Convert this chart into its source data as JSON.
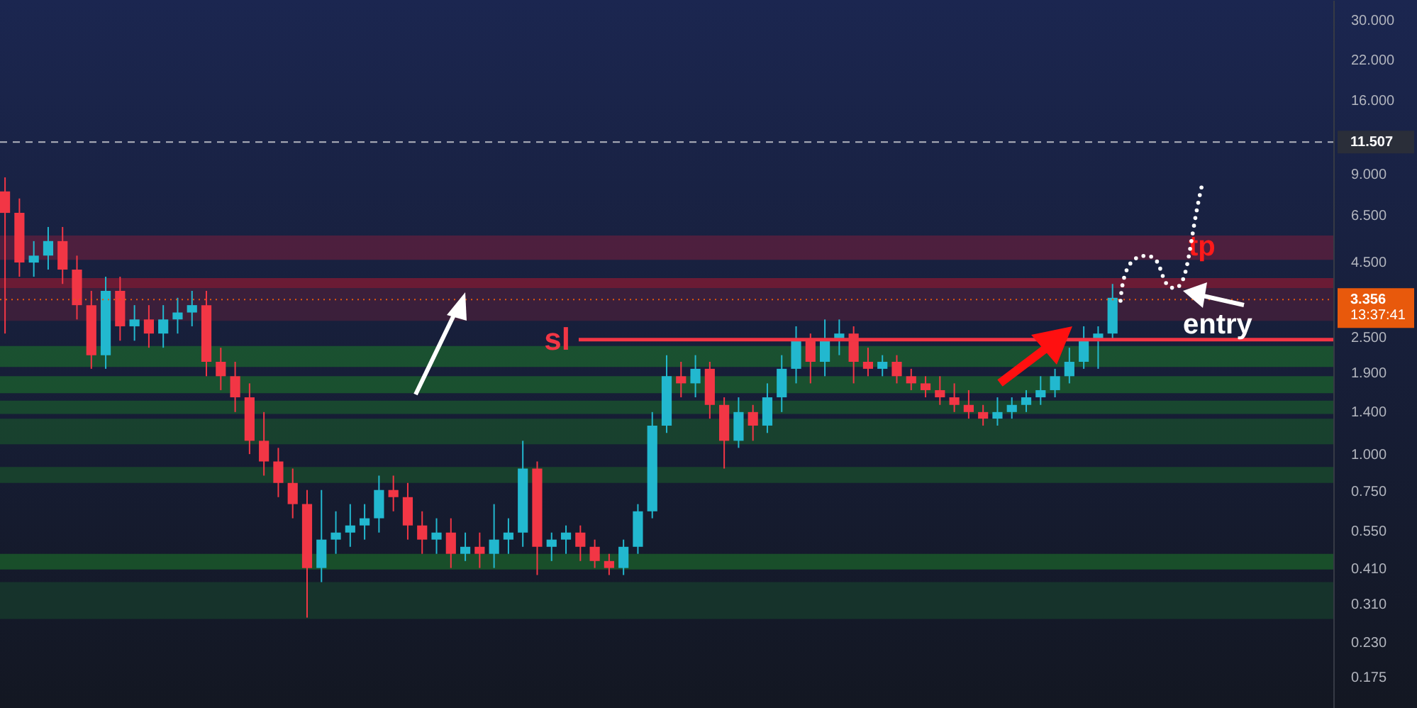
{
  "chart_data": {
    "type": "candlestick",
    "categories": [
      null,
      null,
      null,
      null,
      null,
      null,
      null,
      null,
      null,
      null,
      null,
      null,
      null,
      null,
      null,
      null,
      null,
      null,
      null,
      null,
      null,
      null,
      null,
      null,
      null,
      null,
      null,
      null,
      null,
      null,
      null,
      null,
      null,
      null,
      null,
      null,
      null,
      null,
      null,
      null,
      null,
      null,
      null,
      null,
      null,
      null,
      null,
      null,
      null,
      null,
      null,
      null,
      null,
      null,
      null,
      null,
      null,
      null,
      null,
      null,
      null,
      null,
      null,
      null,
      null,
      null,
      null,
      null,
      null,
      null,
      null,
      null,
      null,
      null,
      null,
      null,
      null,
      null,
      null,
      null,
      null,
      null,
      null,
      null,
      null,
      null,
      null,
      null,
      null,
      null,
      null,
      null,
      null
    ],
    "ohlc": [
      [
        7.82,
        8.73,
        2.57,
        6.61
      ],
      [
        6.61,
        7.4,
        4.01,
        4.48
      ],
      [
        4.48,
        5.3,
        4.01,
        4.73
      ],
      [
        4.73,
        5.92,
        4.24,
        5.3
      ],
      [
        5.3,
        5.92,
        3.79,
        4.24
      ],
      [
        4.24,
        4.73,
        2.87,
        3.21
      ],
      [
        3.21,
        3.59,
        1.95,
        2.17
      ],
      [
        2.17,
        4.01,
        1.95,
        3.59
      ],
      [
        3.59,
        4.01,
        2.43,
        2.72
      ],
      [
        2.72,
        3.21,
        2.43,
        2.87
      ],
      [
        2.87,
        3.21,
        2.3,
        2.57
      ],
      [
        2.57,
        3.21,
        2.3,
        2.87
      ],
      [
        2.87,
        3.4,
        2.57,
        3.03
      ],
      [
        3.03,
        3.59,
        2.72,
        3.21
      ],
      [
        3.21,
        3.59,
        1.84,
        2.06
      ],
      [
        2.06,
        2.3,
        1.65,
        1.84
      ],
      [
        1.84,
        2.06,
        1.39,
        1.56
      ],
      [
        1.56,
        1.74,
        1.0,
        1.11
      ],
      [
        1.11,
        1.39,
        0.845,
        0.944
      ],
      [
        0.944,
        1.05,
        0.714,
        0.798
      ],
      [
        0.798,
        0.893,
        0.605,
        0.676
      ],
      [
        0.676,
        0.755,
        0.278,
        0.41
      ],
      [
        0.41,
        0.755,
        0.367,
        0.512
      ],
      [
        0.512,
        0.639,
        0.458,
        0.541
      ],
      [
        0.541,
        0.676,
        0.484,
        0.572
      ],
      [
        0.572,
        0.676,
        0.512,
        0.605
      ],
      [
        0.605,
        0.845,
        0.541,
        0.755
      ],
      [
        0.755,
        0.845,
        0.639,
        0.714
      ],
      [
        0.714,
        0.798,
        0.512,
        0.572
      ],
      [
        0.572,
        0.639,
        0.458,
        0.512
      ],
      [
        0.512,
        0.605,
        0.458,
        0.541
      ],
      [
        0.541,
        0.605,
        0.41,
        0.458
      ],
      [
        0.458,
        0.541,
        0.433,
        0.484
      ],
      [
        0.484,
        0.541,
        0.41,
        0.458
      ],
      [
        0.458,
        0.676,
        0.41,
        0.512
      ],
      [
        0.512,
        0.605,
        0.458,
        0.541
      ],
      [
        0.541,
        1.11,
        0.484,
        0.893
      ],
      [
        0.893,
        0.944,
        0.388,
        0.484
      ],
      [
        0.484,
        0.541,
        0.433,
        0.512
      ],
      [
        0.512,
        0.572,
        0.458,
        0.541
      ],
      [
        0.541,
        0.572,
        0.433,
        0.484
      ],
      [
        0.484,
        0.512,
        0.41,
        0.433
      ],
      [
        0.433,
        0.458,
        0.388,
        0.41
      ],
      [
        0.41,
        0.512,
        0.388,
        0.484
      ],
      [
        0.484,
        0.676,
        0.458,
        0.639
      ],
      [
        0.639,
        1.39,
        0.605,
        1.25
      ],
      [
        1.25,
        2.17,
        1.18,
        1.84
      ],
      [
        1.84,
        2.06,
        1.56,
        1.74
      ],
      [
        1.74,
        2.17,
        1.56,
        1.95
      ],
      [
        1.95,
        2.06,
        1.32,
        1.47
      ],
      [
        1.47,
        1.56,
        0.893,
        1.11
      ],
      [
        1.11,
        1.56,
        1.05,
        1.39
      ],
      [
        1.39,
        1.47,
        1.11,
        1.25
      ],
      [
        1.25,
        1.74,
        1.18,
        1.56
      ],
      [
        1.56,
        2.17,
        1.39,
        1.95
      ],
      [
        1.95,
        2.72,
        1.74,
        2.43
      ],
      [
        2.43,
        2.57,
        1.74,
        2.06
      ],
      [
        2.06,
        2.87,
        1.84,
        2.43
      ],
      [
        2.43,
        2.87,
        2.17,
        2.57
      ],
      [
        2.57,
        2.72,
        1.74,
        2.06
      ],
      [
        2.06,
        2.3,
        1.84,
        1.95
      ],
      [
        1.95,
        2.17,
        1.84,
        2.06
      ],
      [
        2.06,
        2.17,
        1.74,
        1.84
      ],
      [
        1.84,
        1.95,
        1.65,
        1.74
      ],
      [
        1.74,
        1.84,
        1.56,
        1.65
      ],
      [
        1.65,
        1.84,
        1.47,
        1.56
      ],
      [
        1.56,
        1.74,
        1.39,
        1.47
      ],
      [
        1.47,
        1.65,
        1.32,
        1.39
      ],
      [
        1.39,
        1.47,
        1.25,
        1.32
      ],
      [
        1.32,
        1.56,
        1.25,
        1.39
      ],
      [
        1.39,
        1.56,
        1.32,
        1.47
      ],
      [
        1.47,
        1.65,
        1.39,
        1.56
      ],
      [
        1.56,
        1.84,
        1.47,
        1.65
      ],
      [
        1.65,
        1.95,
        1.56,
        1.84
      ],
      [
        1.84,
        2.3,
        1.74,
        2.06
      ],
      [
        2.06,
        2.72,
        1.95,
        2.43
      ],
      [
        2.43,
        2.72,
        1.95,
        2.57
      ],
      [
        2.57,
        3.79,
        2.43,
        3.4
      ],
      null,
      null,
      null,
      null,
      null,
      null,
      null,
      null,
      null,
      null,
      null,
      null,
      null,
      null,
      null
    ],
    "log": "y",
    "ylim": [
      0.137,
      35
    ],
    "yticks": [
      {
        "value": 0.175,
        "label": "0.175"
      },
      {
        "value": 0.23,
        "label": "0.230"
      },
      {
        "value": 0.31,
        "label": "0.310"
      },
      {
        "value": 0.41,
        "label": "0.410"
      },
      {
        "value": 0.55,
        "label": "0.550"
      },
      {
        "value": 0.75,
        "label": "0.750"
      },
      {
        "value": 1,
        "label": "1.000"
      },
      {
        "value": 1.4,
        "label": "1.400"
      },
      {
        "value": 1.9,
        "label": "1.900"
      },
      {
        "value": 2.5,
        "label": "2.500"
      },
      {
        "value": 4.5,
        "label": "4.500"
      },
      {
        "value": 6.5,
        "label": "6.500"
      },
      {
        "value": 9,
        "label": "9.000"
      },
      {
        "value": 16,
        "label": "16.000"
      },
      {
        "value": 22,
        "label": "22.000"
      },
      {
        "value": 30,
        "label": "30.000"
      }
    ],
    "tick_labels": "y",
    "bands": [
      {
        "axis": "y",
        "from": 4.58,
        "to": 5.54,
        "color": "#7a1f3d"
      },
      {
        "axis": "y",
        "from": 3.67,
        "to": 3.97,
        "color": "#b0172e"
      },
      {
        "axis": "y",
        "from": 2.84,
        "to": 3.67,
        "color": "#5a1f3a"
      },
      {
        "axis": "y",
        "from": 1.98,
        "to": 2.33,
        "color": "#1e7a2a"
      },
      {
        "axis": "y",
        "from": 1.61,
        "to": 1.84,
        "color": "#1e7a2a"
      },
      {
        "axis": "y",
        "from": 1.37,
        "to": 1.52,
        "color": "#1b6a2a"
      },
      {
        "axis": "y",
        "from": 1.08,
        "to": 1.32,
        "color": "#1b5e2a"
      },
      {
        "axis": "y",
        "from": 0.798,
        "to": 0.904,
        "color": "#1b5e2a"
      },
      {
        "axis": "y",
        "from": 0.405,
        "to": 0.458,
        "color": "#1e7a2a"
      },
      {
        "axis": "y",
        "from": 0.275,
        "to": 0.367,
        "color": "#17482e"
      }
    ],
    "ref_lines": [
      {
        "axis": "y",
        "value": 11.507,
        "label": "11.507",
        "color": "#b2b5be",
        "line_style": "dashed"
      },
      {
        "axis": "y",
        "value": 3.356,
        "label": "3.356",
        "color": "#e8590c",
        "line_style": "dotted"
      },
      {
        "axis": "y",
        "value": 2.45,
        "label": "sl",
        "color": "#f23645",
        "line_style": "solid"
      }
    ],
    "annotations": [
      "tp",
      "entry",
      "13:37:41"
    ]
  }
}
